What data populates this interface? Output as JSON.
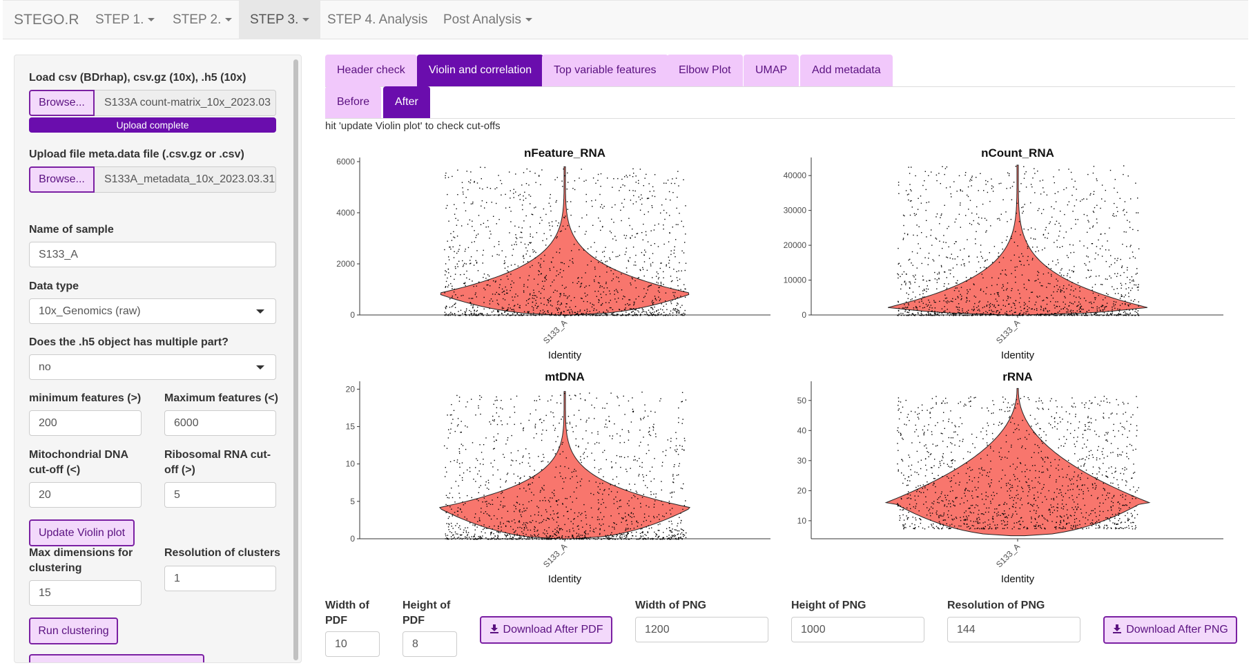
{
  "nav": {
    "brand": "STEGO.R",
    "items": [
      "STEP 1.",
      "STEP 2.",
      "STEP 3.",
      "STEP 4. Analysis",
      "Post Analysis"
    ]
  },
  "sidebar": {
    "load_label": "Load csv (BDrhap), csv.gz (10x), .h5 (10x)",
    "browse": "Browse...",
    "count_file": "S133A count-matrix_10x_2023.03",
    "upload_status": "Upload complete",
    "upload_progress": 100,
    "meta_label": "Upload file meta.data file (.csv.gz or .csv)",
    "meta_file": "S133A_metadata_10x_2023.03.31",
    "sample_label": "Name of sample",
    "sample_value": "S133_A",
    "dtype_label": "Data type",
    "dtype_value": "10x_Genomics (raw)",
    "multi_label": "Does the .h5 object has multiple part?",
    "multi_value": "no",
    "minfeat_label": "minimum features (>)",
    "minfeat_value": "200",
    "maxfeat_label": "Maximum features (<)",
    "maxfeat_value": "6000",
    "mt_label": "Mitochondrial DNA cut-off (<)",
    "mt_value": "20",
    "rb_label": "Ribosomal RNA cut-off (>)",
    "rb_value": "5",
    "update_btn": "Update Violin plot",
    "maxdim_label": "Max dimensions for clustering",
    "maxdim_value": "15",
    "res_label": "Resolution of clusters",
    "res_value": "1",
    "run_btn": "Run clustering"
  },
  "tabs": [
    "Header check",
    "Violin and correlation",
    "Top variable features",
    "Elbow Plot",
    "UMAP",
    "Add metadata"
  ],
  "subtabs": [
    "Before",
    "After"
  ],
  "hint": "hit 'update Violin plot' to check cut-offs",
  "chart_data": [
    {
      "type": "violin",
      "title": "nFeature_RNA",
      "category": "S133_A",
      "xlabel": "Identity",
      "ylim": [
        0,
        6000
      ],
      "yticks": [
        0,
        2000,
        4000,
        6000
      ],
      "widest_at": 800,
      "max": 5800
    },
    {
      "type": "violin",
      "title": "nCount_RNA",
      "category": "S133_A",
      "xlabel": "Identity",
      "ylim": [
        0,
        44000
      ],
      "yticks": [
        0,
        10000,
        20000,
        30000,
        40000
      ],
      "widest_at": 2000,
      "max": 43000
    },
    {
      "type": "violin",
      "title": "mtDNA",
      "category": "S133_A",
      "xlabel": "Identity",
      "ylim": [
        0,
        20.5
      ],
      "yticks": [
        0,
        5,
        10,
        15,
        20
      ],
      "widest_at": 4,
      "max": 19.7
    },
    {
      "type": "violin",
      "title": "rRNA",
      "category": "S133_A",
      "xlabel": "Identity",
      "ylim": [
        4,
        55
      ],
      "yticks": [
        10,
        20,
        30,
        40,
        50
      ],
      "widest_at": 16,
      "max": 54
    }
  ],
  "downloads": {
    "wpdf_label": "Width of PDF",
    "wpdf_value": "10",
    "hpdf_label": "Height of PDF",
    "hpdf_value": "8",
    "pdf_btn": "Download After PDF",
    "wpng_label": "Width of PNG",
    "wpng_value": "1200",
    "hpng_label": "Height of PNG",
    "hpng_value": "1000",
    "rpng_label": "Resolution of PNG",
    "rpng_value": "144",
    "png_btn": "Download After PNG"
  },
  "colors": {
    "accent": "#6a0dad",
    "tab_bg": "#f1c8fb",
    "violin": "#f8766d"
  }
}
